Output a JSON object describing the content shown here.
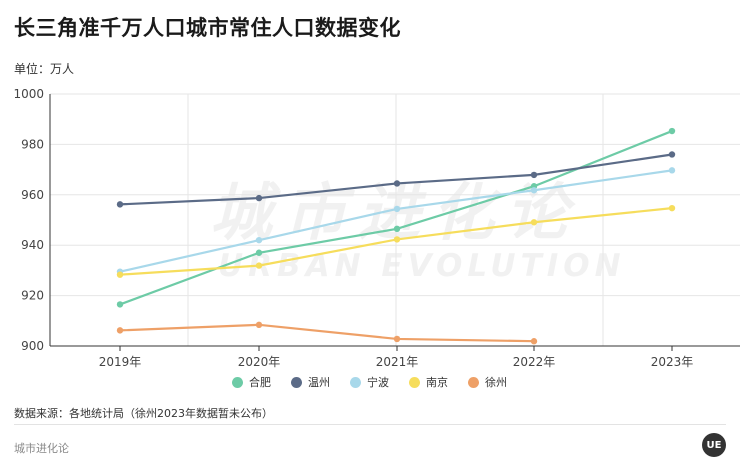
{
  "title": "长三角准千万人口城市常住人口数据变化",
  "unit_label": "单位：万人",
  "source_note": "数据来源：各地统计局（徐州2023年数据暂未公布）",
  "brand": "城市进化论",
  "watermark": {
    "cn": "城市进化论",
    "en": "URBAN EVOLUTION"
  },
  "logo_text": "UE",
  "chart_data": {
    "type": "line",
    "categories": [
      "2019年",
      "2020年",
      "2021年",
      "2022年",
      "2023年"
    ],
    "ylim": [
      900,
      1000
    ],
    "yticks": [
      "900",
      "920",
      "940",
      "960",
      "980",
      "1000"
    ],
    "grid": true,
    "legend_position": "bottom",
    "xlabel": "",
    "ylabel": "",
    "series": [
      {
        "name": "合肥",
        "color": "#6dcba6",
        "values": [
          916.5,
          937.0,
          946.5,
          963.4,
          985.3
        ]
      },
      {
        "name": "温州",
        "color": "#5b6b87",
        "values": [
          956.2,
          958.7,
          964.5,
          967.9,
          976.0
        ]
      },
      {
        "name": "宁波",
        "color": "#a8d8ea",
        "values": [
          929.5,
          942.0,
          954.4,
          961.8,
          969.7
        ]
      },
      {
        "name": "南京",
        "color": "#f6dd5c",
        "values": [
          928.3,
          931.9,
          942.3,
          949.1,
          954.7
        ]
      },
      {
        "name": "徐州",
        "color": "#eea067",
        "values": [
          906.2,
          908.4,
          902.8,
          901.9,
          null
        ]
      }
    ]
  }
}
